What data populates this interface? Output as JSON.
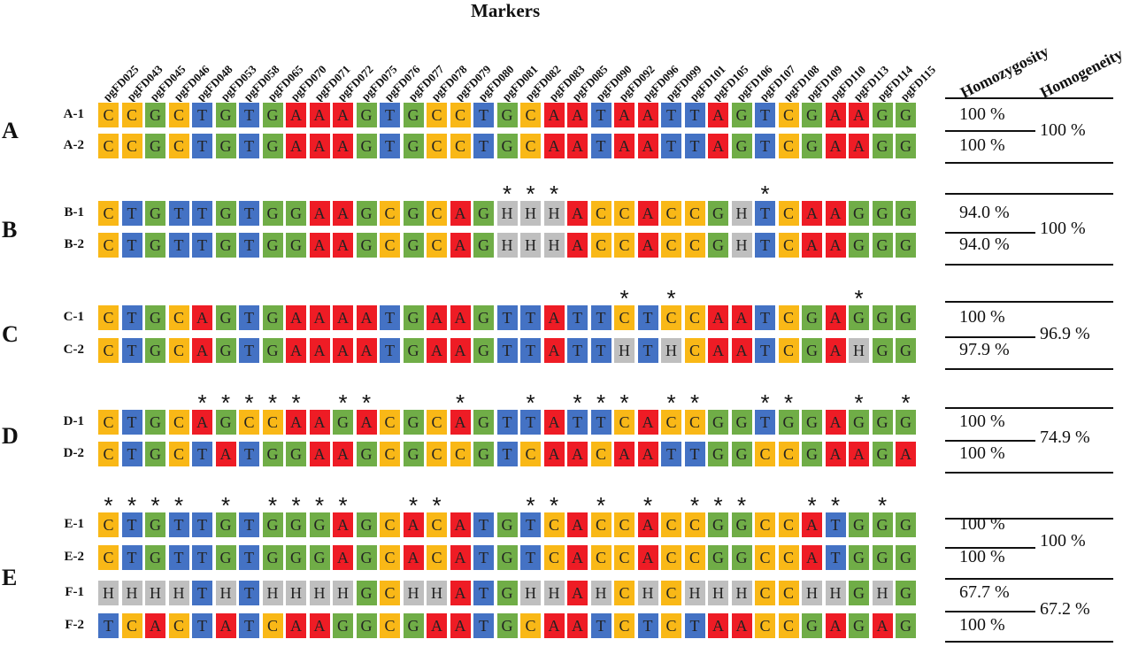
{
  "title": "Markers",
  "markers": [
    "pgFD025",
    "pgFD043",
    "pgFD045",
    "pgFD046",
    "pgFD048",
    "pgFD053",
    "pgFD058",
    "pgFD065",
    "pgFD070",
    "pgFD071",
    "pgFD072",
    "pgFD075",
    "pgFD076",
    "pgFD077",
    "pgFD078",
    "pgFD079",
    "pgFD080",
    "pgFD081",
    "pgFD082",
    "pgFD083",
    "pgFD085",
    "pgFD090",
    "pgFD092",
    "pgFD096",
    "pgFD099",
    "pgFD101",
    "pgFD105",
    "pgFD106",
    "pgFD107",
    "pgFD108",
    "pgFD109",
    "pgFD110",
    "pgFD113",
    "pgFD114",
    "pgFD115"
  ],
  "column_headers": {
    "homozygosity": "Homozygosity",
    "homogeneity": "Homogeneity"
  },
  "base_colors": {
    "C": "#f9b817",
    "T": "#4472c4",
    "G": "#70ad47",
    "A": "#ee1c25",
    "H": "#bfbfbf"
  },
  "asterisk": "*",
  "groups": [
    {
      "label": "A",
      "homogeneity": "100 %",
      "star_columns": [],
      "rows": [
        {
          "label": "A-1",
          "seq": "CCGCTGTGAAAGTGCCTGCAATAATTAGTCGAAGG",
          "homozygosity": "100 %"
        },
        {
          "label": "A-2",
          "seq": "CCGCTGTGAAAGTGCCTGCAATAATTAGTCGAAGG",
          "homozygosity": "100 %"
        }
      ]
    },
    {
      "label": "B",
      "homogeneity": "100 %",
      "star_columns": [
        17,
        18,
        19,
        28
      ],
      "rows": [
        {
          "label": "B-1",
          "seq": "CTGTTGTGGAAGCGCAGHHHACCACCGHTCAAGGG",
          "homozygosity": "94.0 %"
        },
        {
          "label": "B-2",
          "seq": "CTGTTGTGGAAGCGCAGHHHACCACCGHTCAAGGG",
          "homozygosity": "94.0 %"
        }
      ]
    },
    {
      "label": "C",
      "homogeneity": "96.9 %",
      "star_columns": [
        22,
        24,
        32
      ],
      "rows": [
        {
          "label": "C-1",
          "seq": "CTGCAGTGAAAATGAAGTTATTCTCCAATCGAGGG",
          "homozygosity": "100 %"
        },
        {
          "label": "C-2",
          "seq": "CTGCAGTGAAAATGAAGTTATTHTHCAATCGAHGG",
          "homozygosity": "97.9 %"
        }
      ]
    },
    {
      "label": "D",
      "homogeneity": "74.9 %",
      "star_columns": [
        4,
        5,
        6,
        7,
        8,
        10,
        11,
        15,
        18,
        20,
        21,
        22,
        24,
        25,
        28,
        29,
        32,
        34
      ],
      "rows": [
        {
          "label": "D-1",
          "seq": "CTGCAGCCAAGACGCAGTTATTCACCGGTGGAGGG",
          "homozygosity": "100 %"
        },
        {
          "label": "D-2",
          "seq": "CTGCTATGGAAGCGCCGTCAACAATTGGCCGAAGA",
          "homozygosity": "100 %"
        }
      ]
    },
    {
      "label": "E",
      "homogeneity": "100 %",
      "star_columns": [
        0,
        1,
        2,
        3,
        5,
        7,
        8,
        9,
        10,
        13,
        14,
        18,
        19,
        21,
        23,
        25,
        26,
        27,
        30,
        31,
        33
      ],
      "rows": [
        {
          "label": "E-1",
          "seq": "CTGTTGTGGGAGCACATGTCACCACCGGCCATGGG",
          "homozygosity": "100 %"
        },
        {
          "label": "E-2",
          "seq": "CTGTTGTGGGAGCACATGTCACCACCGGCCATGGG",
          "homozygosity": "100 %"
        }
      ]
    },
    {
      "label": "",
      "homogeneity": "67.2 %",
      "star_columns": [],
      "rows": [
        {
          "label": "F-1",
          "seq": "HHHHTHTHHHHGCHHATGHHAHCHCHHHCCHHGHG",
          "homozygosity": "67.7 %"
        },
        {
          "label": "F-2",
          "seq": "TCACTATCAAGGCGAATGCAATCTCTAACCGAGAG",
          "homozygosity": "100 %"
        }
      ]
    }
  ]
}
